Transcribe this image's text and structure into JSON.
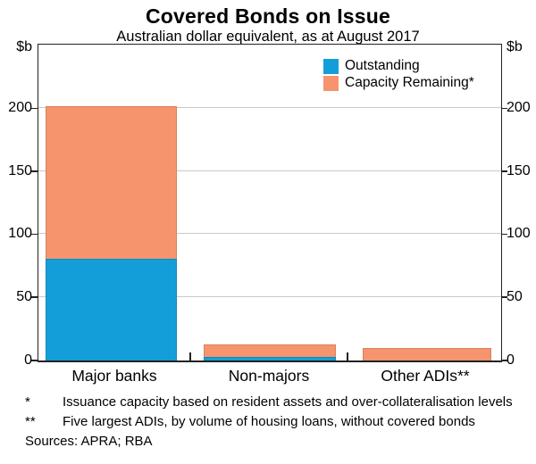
{
  "title": "Covered Bonds on Issue",
  "subtitle": "Australian dollar equivalent, as at August 2017",
  "axis": {
    "unit_left": "$b",
    "unit_right": "$b",
    "yticks": [
      0,
      50,
      100,
      150,
      200
    ]
  },
  "legend": [
    {
      "label": "Outstanding",
      "color": "#149ed9"
    },
    {
      "label": "Capacity Remaining*",
      "color": "#f6946e"
    }
  ],
  "chart_data": {
    "type": "bar",
    "stacked": true,
    "categories": [
      "Major banks",
      "Non-majors",
      "Other ADIs**"
    ],
    "series": [
      {
        "name": "Outstanding",
        "color": "#149ed9",
        "values": [
          81,
          3,
          0
        ]
      },
      {
        "name": "Capacity Remaining*",
        "color": "#f6946e",
        "values": [
          121,
          10,
          10
        ]
      }
    ],
    "title": "Covered Bonds on Issue",
    "subtitle": "Australian dollar equivalent, as at August 2017",
    "xlabel": "",
    "ylabel": "$b",
    "ylim": [
      0,
      250
    ],
    "yticks": [
      0,
      50,
      100,
      150,
      200
    ],
    "grid": true,
    "legend_position": "top-right"
  },
  "footnotes": [
    {
      "marker": "*",
      "text": "Issuance capacity based on resident assets and over-collateralisation levels"
    },
    {
      "marker": "**",
      "text": "Five largest ADIs, by volume of housing loans, without covered bonds"
    }
  ],
  "sources": "Sources: APRA; RBA"
}
